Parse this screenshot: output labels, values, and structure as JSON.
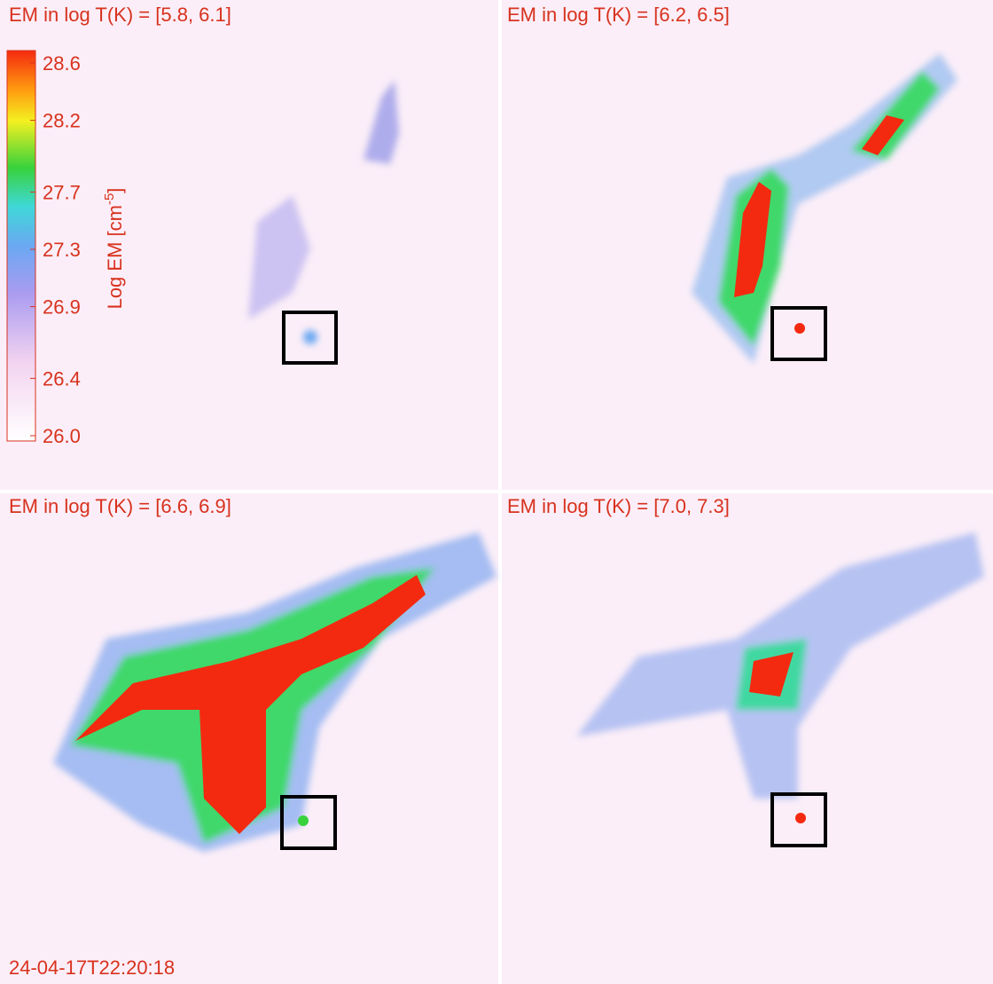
{
  "panels": [
    {
      "title": "EM in log T(K) = [5.8, 6.1]"
    },
    {
      "title": "EM in log T(K) = [6.2, 6.5]"
    },
    {
      "title": "EM in log T(K) = [6.6, 6.9]"
    },
    {
      "title": "EM in log T(K) = [7.0, 7.3]"
    }
  ],
  "colorbar": {
    "label": {
      "main": "Log EM [cm",
      "superscript": "-5",
      "close": "]"
    },
    "lim": [
      26,
      28.6
    ],
    "ticks": [
      {
        "value": 26,
        "label": "26.0"
      },
      26.4,
      26.9,
      27.3,
      27.7,
      28.2,
      28.6
    ]
  },
  "timestamp": "24-04-17T22:20:18"
}
